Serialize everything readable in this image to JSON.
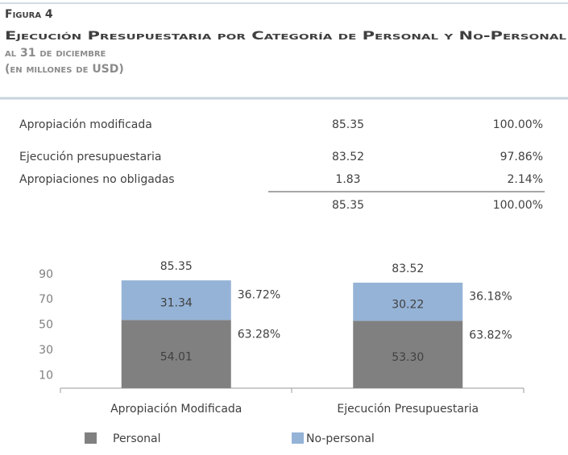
{
  "figure": {
    "label": "Figura 4",
    "title": "Ejecución Presupuestaria por Categoría de Personal y No-Personal",
    "subtitle": "al 31 de diciembre",
    "units": "(en millones de USD)"
  },
  "table": {
    "rows": [
      [
        "Apropiación modificada",
        "85.35",
        "100.00%"
      ],
      [
        "Ejecución presupuestaria",
        "83.52",
        "97.86%"
      ],
      [
        "Apropiaciones no obligadas",
        "1.83",
        "2.14%"
      ]
    ],
    "total": [
      "85.35",
      "100.00%"
    ]
  },
  "chart_data": {
    "type": "bar",
    "stacked": true,
    "categories": [
      "Apropiación Modificada",
      "Ejecución Presupuestaria"
    ],
    "series": [
      {
        "name": "Personal",
        "color": "#808080",
        "values": [
          54.01,
          53.3
        ],
        "value_labels": [
          "54.01",
          "53.30"
        ],
        "share_labels": [
          "63.28%",
          "63.82%"
        ]
      },
      {
        "name": "No-personal",
        "color": "#95b3d7",
        "values": [
          31.34,
          30.22
        ],
        "value_labels": [
          "31.34",
          "30.22"
        ],
        "share_labels": [
          "36.72%",
          "36.18%"
        ]
      }
    ],
    "totals": [
      85.35,
      83.52
    ],
    "ylim": [
      0,
      95
    ],
    "yticks": [
      10,
      30,
      50,
      70,
      90
    ]
  }
}
